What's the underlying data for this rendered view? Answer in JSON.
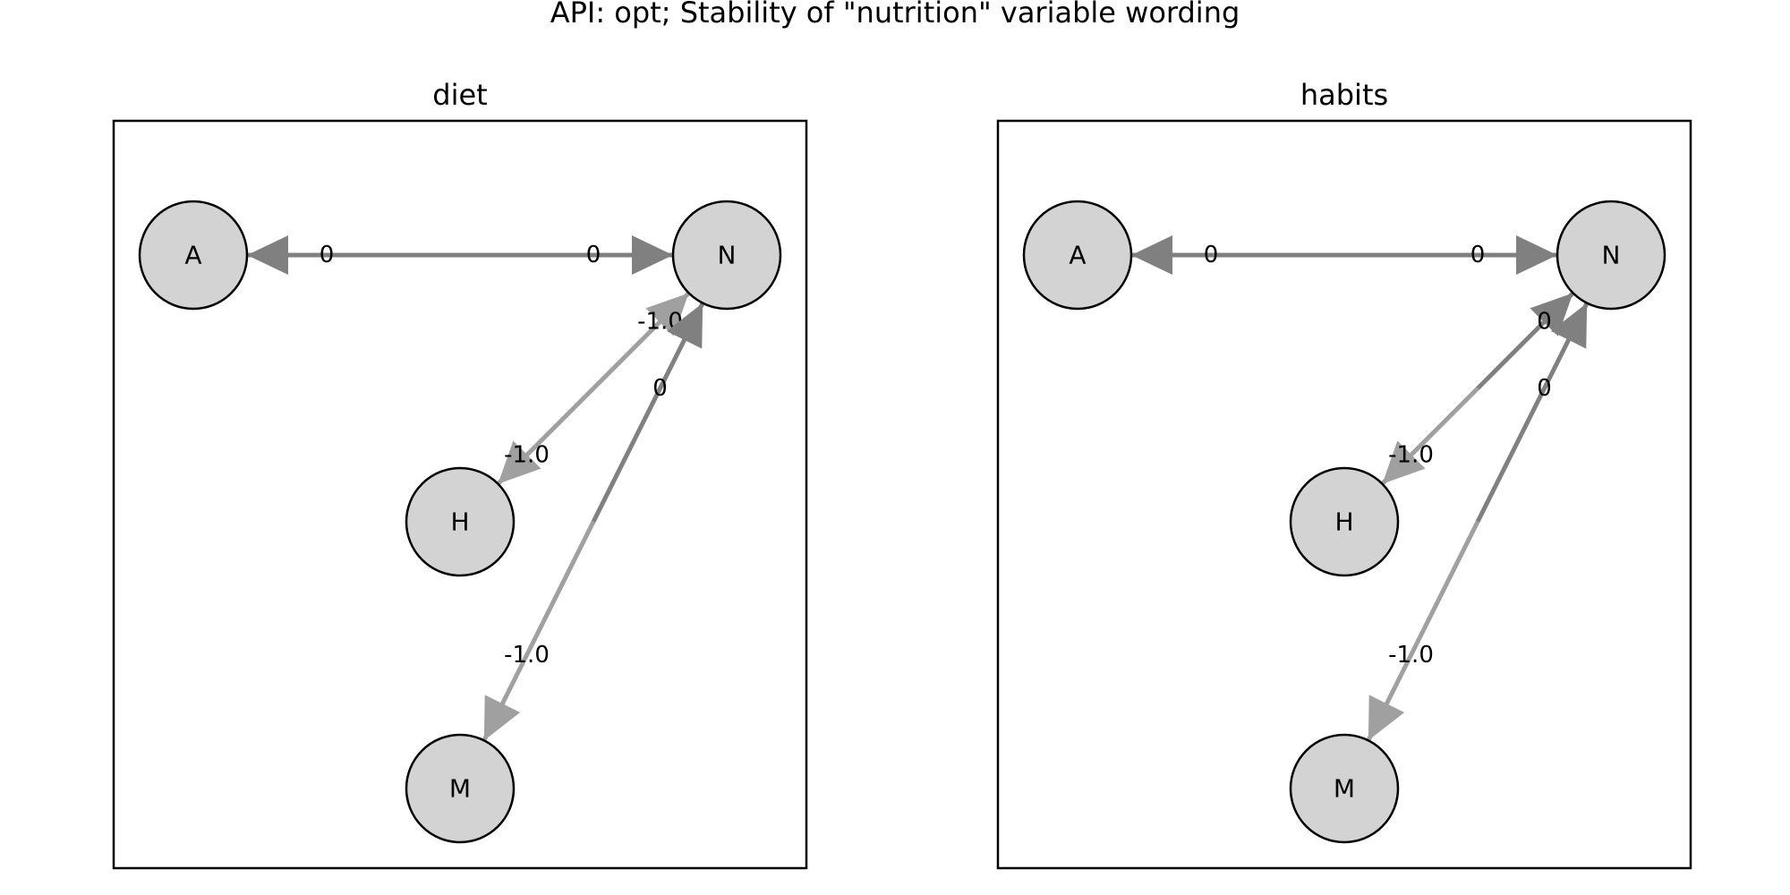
{
  "figure": {
    "title": "API: opt; Stability of \"nutrition\" variable wording"
  },
  "colors": {
    "edge_dark": "#808080",
    "edge_light": "#a0a0a0",
    "node_fill": "#d3d3d3",
    "node_stroke": "#000000"
  },
  "panels": [
    {
      "title": "diet",
      "nodes": [
        "A",
        "N",
        "H",
        "M"
      ],
      "edges": [
        {
          "source": "A",
          "target": "N",
          "bidirectional": true,
          "color": "dark",
          "weight_near_source": "0",
          "weight_near_target": "0"
        },
        {
          "source": "N",
          "target": "H",
          "bidirectional": true,
          "color": "light",
          "weight_near_source": "-1.0",
          "weight_near_target": "-1.0"
        },
        {
          "source": "N",
          "target": "M",
          "bidirectional": true,
          "color": "dark_to_light",
          "weight_near_source": "0",
          "weight_near_target": "-1.0"
        }
      ]
    },
    {
      "title": "habits",
      "nodes": [
        "A",
        "N",
        "H",
        "M"
      ],
      "edges": [
        {
          "source": "A",
          "target": "N",
          "bidirectional": true,
          "color": "dark",
          "weight_near_source": "0",
          "weight_near_target": "0"
        },
        {
          "source": "N",
          "target": "H",
          "bidirectional": true,
          "color": "dark_to_light",
          "weight_near_source": "0",
          "weight_near_target": "-1.0"
        },
        {
          "source": "N",
          "target": "M",
          "bidirectional": true,
          "color": "dark_to_light",
          "weight_near_source": "0",
          "weight_near_target": "-1.0"
        }
      ]
    }
  ]
}
